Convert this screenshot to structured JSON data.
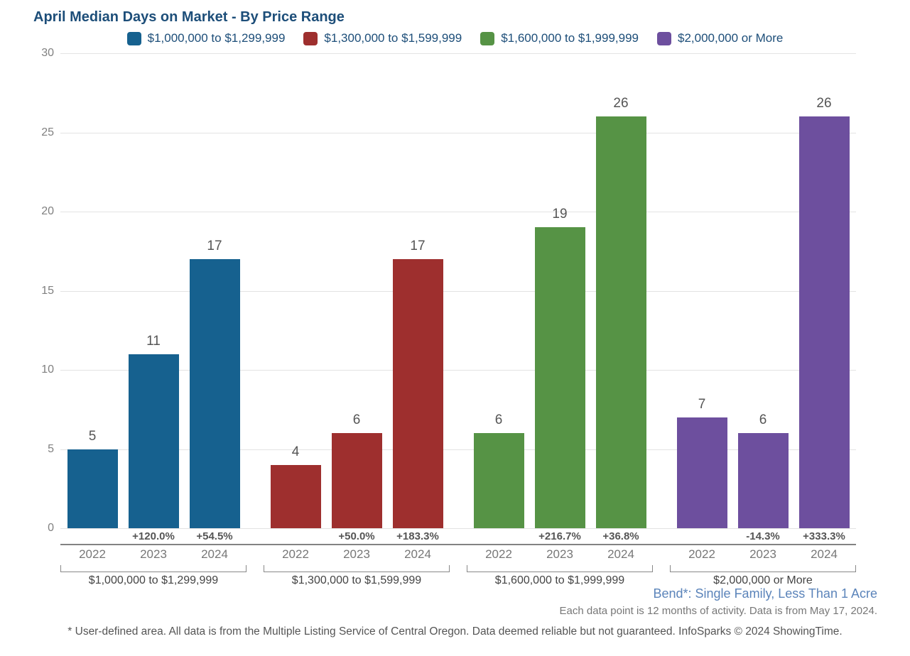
{
  "chart_data": {
    "type": "bar",
    "title": "April Median Days on Market - By Price Range",
    "xlabel": "",
    "ylabel": "",
    "ylim": [
      0,
      30
    ],
    "yticks": [
      0,
      5,
      10,
      15,
      20,
      25,
      30
    ],
    "grid": true,
    "legend_position": "top",
    "categories": [
      "2022",
      "2023",
      "2024"
    ],
    "series": [
      {
        "name": "$1,000,000 to $1,299,999",
        "color": "#16618f",
        "values": [
          5,
          11,
          17
        ],
        "pct_change": [
          "",
          "+120.0%",
          "+54.5%"
        ]
      },
      {
        "name": "$1,300,000 to $1,599,999",
        "color": "#9e2f2e",
        "values": [
          4,
          6,
          17
        ],
        "pct_change": [
          "",
          "+50.0%",
          "+183.3%"
        ]
      },
      {
        "name": "$1,600,000 to $1,999,999",
        "color": "#569345",
        "values": [
          6,
          19,
          26
        ],
        "pct_change": [
          "",
          "+216.7%",
          "+36.8%"
        ]
      },
      {
        "name": "$2,000,000 or More",
        "color": "#6d4f9e",
        "values": [
          7,
          6,
          26
        ],
        "pct_change": [
          "",
          "-14.3%",
          "+333.3%"
        ]
      }
    ]
  },
  "footer": {
    "area_label": "Bend*: Single Family, Less Than 1 Acre",
    "data_note": "Each data point is 12 months of activity. Data is from May 17, 2024.",
    "disclaimer": "* User-defined area. All data is from the Multiple Listing Service of Central Oregon. Data deemed reliable but not guaranteed. InfoSparks © 2024 ShowingTime."
  },
  "colors": {
    "title_text": "#1d4e79",
    "legend_text": "#1d4e79",
    "area_label_text": "#5b84ba",
    "axis_text": "#808080",
    "value_label_text": "#555555",
    "gridline": "#e3e3e3",
    "separator_line": "#828282",
    "bar_blue": "#16618f",
    "bar_red": "#9e2f2e",
    "bar_green": "#569345",
    "bar_purple": "#6d4f9e"
  }
}
